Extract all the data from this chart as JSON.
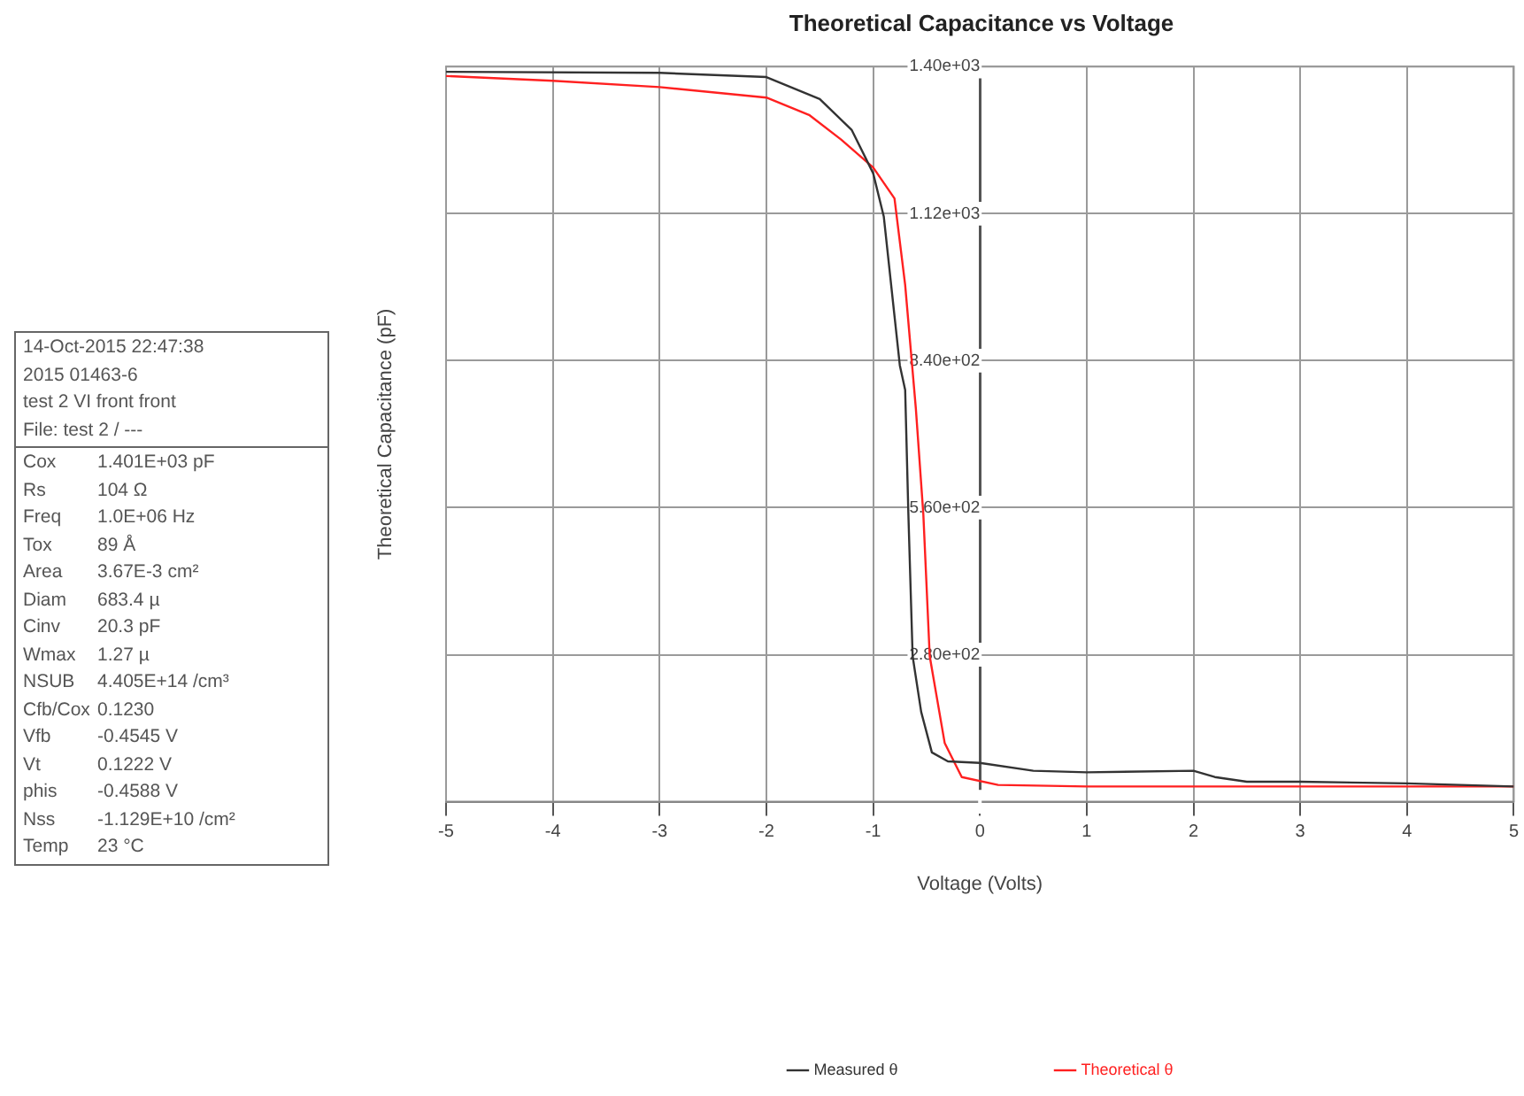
{
  "chart_data": {
    "type": "line",
    "title": "Theoretical Capacitance vs Voltage",
    "xlabel": "Voltage (Volts)",
    "ylabel": "Theoretical Capacitance (pF)",
    "xlim": [
      -5,
      5
    ],
    "xticks": [
      -5,
      -4,
      -3,
      -2,
      -1,
      0,
      1,
      2,
      3,
      4,
      5
    ],
    "ylim": [
      0,
      1400
    ],
    "yticks": [
      {
        "value": 0,
        "label": null
      },
      {
        "value": 280,
        "label": "2.80e+02"
      },
      {
        "value": 560,
        "label": "5.60e+02"
      },
      {
        "value": 840,
        "label": "8.40e+02"
      },
      {
        "value": 1120,
        "label": "1.12e+03"
      },
      {
        "value": 1400,
        "label": "1.40e+03"
      }
    ],
    "grid": true,
    "legend": "bottom",
    "marker": "none",
    "line_style": "solid",
    "series": [
      {
        "name": "Measured θ",
        "color": "#333333",
        "x": [
          -5,
          -3,
          -2,
          -1.5,
          -1.2,
          -1,
          -0.9,
          -0.8,
          -0.75,
          -0.7,
          -0.67,
          -0.63,
          -0.55,
          -0.45,
          -0.3,
          0,
          0.5,
          1,
          2,
          2.2,
          2.5,
          3,
          4,
          5
        ],
        "values": [
          1390,
          1388,
          1380,
          1338,
          1279,
          1197,
          1114,
          925,
          831,
          784,
          548,
          277,
          171,
          94,
          77,
          74,
          59,
          56,
          59,
          47,
          38,
          38,
          35,
          29
        ]
      },
      {
        "name": "Theoretical θ",
        "color": "#ff2020",
        "x": [
          -5,
          -4,
          -3,
          -2,
          -1.6,
          -1.3,
          -1,
          -0.8,
          -0.7,
          -0.6,
          -0.53,
          -0.47,
          -0.33,
          -0.17,
          0.17,
          1,
          5
        ],
        "values": [
          1382,
          1373,
          1361,
          1341,
          1308,
          1261,
          1208,
          1149,
          984,
          749,
          548,
          277,
          112,
          47,
          32,
          29,
          29
        ]
      }
    ],
    "annotations": [
      "14-Oct-2015 22:47:38",
      "2015 01463-6",
      "test 2 VI front front",
      "File: test 2 / ---",
      "Cox\t1.401E+03 pF",
      "Rs\t104 Ω",
      "Freq\t1.0E+06 Hz",
      "Tox\t89 Å",
      "Area\t3.67E-3 cm²",
      "Diam\t683.4 µ",
      "Cinv\t20.3 pF",
      "Wmax\t1.27 µ",
      "NSUB\t4.405E+14 /cm³",
      "Cfb/Cox\t0.1230",
      "Vfb\t-0.4545 V",
      "Vt\t0.1222 V",
      "phis\t-0.4588 V",
      "Nss\t-1.129E+10 /cm²",
      "Temp\t23 °C"
    ]
  }
}
